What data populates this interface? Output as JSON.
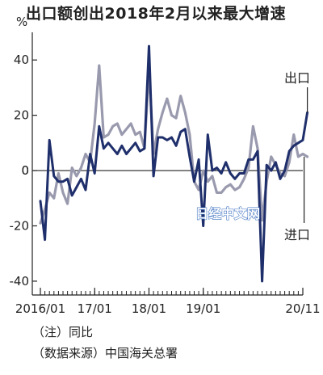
{
  "title": "出口额创出2018年2月以来最大增速",
  "notes": {
    "note1": "（注）同比",
    "note2": "（数据来源）中国海关总署"
  },
  "watermark": "日经中文网",
  "chart_data": {
    "type": "line",
    "title": "出口额创出2018年2月以来最大增速",
    "ylabel": "%",
    "ylim": [
      -45,
      50
    ],
    "yticks": [
      40,
      20,
      0,
      -20,
      -40
    ],
    "xtick_labels": [
      "2016/01",
      "17/01",
      "18/01",
      "19/01",
      "20/11"
    ],
    "xlim": [
      "2016-01",
      "2020-11"
    ],
    "grid": false,
    "series": [
      {
        "name": "出口",
        "color": "#1f2f6b",
        "values": [
          -11,
          -25,
          11,
          -2,
          -4,
          -4,
          -3,
          -9,
          -6,
          -3,
          -7,
          6,
          -1,
          16,
          8,
          10,
          8,
          6,
          9,
          6,
          8,
          10,
          7,
          8,
          45,
          -2,
          12,
          12,
          11,
          12,
          9,
          14,
          15,
          5,
          -4,
          4,
          -20,
          13,
          0,
          1,
          -1,
          3,
          -1,
          -3,
          -1,
          -1,
          4,
          4,
          7,
          -40,
          2,
          0,
          3,
          -3,
          0,
          7,
          9,
          10,
          11,
          21
        ]
      },
      {
        "name": "进口",
        "color": "#9a9aaf",
        "values": [
          -19,
          -14,
          -8,
          -10,
          -1,
          -8,
          -12,
          1,
          -2,
          1,
          6,
          3,
          17,
          38,
          12,
          13,
          16,
          17,
          13,
          15,
          17,
          13,
          14,
          8,
          37,
          6,
          15,
          21,
          26,
          20,
          19,
          27,
          21,
          13,
          -4,
          -7,
          0,
          -4,
          -2,
          -8,
          -8,
          -6,
          -5,
          -7,
          -6,
          -3,
          1,
          16,
          8,
          -18,
          -4,
          5,
          2,
          -1,
          -2,
          3,
          13,
          5,
          6,
          5
        ]
      }
    ]
  }
}
